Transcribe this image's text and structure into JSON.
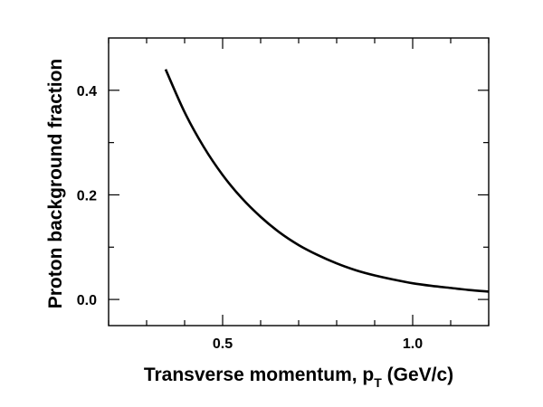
{
  "chart_data": {
    "type": "line",
    "title": "",
    "xlabel_main": "Transverse momentum, p",
    "xlabel_sub": "T",
    "xlabel_unit": " (GeV/c)",
    "ylabel": "Proton background fraction",
    "xlim": [
      0.2,
      1.2
    ],
    "ylim": [
      -0.05,
      0.5
    ],
    "x_ticks": [
      {
        "value": 0.5,
        "label": "0.5"
      },
      {
        "value": 1.0,
        "label": "1.0"
      }
    ],
    "y_ticks": [
      {
        "value": 0.0,
        "label": "0.0"
      },
      {
        "value": 0.2,
        "label": "0.2"
      },
      {
        "value": 0.4,
        "label": "0.4"
      }
    ],
    "series": [
      {
        "color": "#000000",
        "x": [
          0.35,
          0.4,
          0.45,
          0.5,
          0.55,
          0.6,
          0.65,
          0.7,
          0.75,
          0.8,
          0.85,
          0.9,
          0.95,
          1.0,
          1.05,
          1.1,
          1.15,
          1.2
        ],
        "y": [
          0.44,
          0.358,
          0.292,
          0.238,
          0.194,
          0.158,
          0.128,
          0.104,
          0.085,
          0.069,
          0.056,
          0.046,
          0.038,
          0.031,
          0.026,
          0.022,
          0.018,
          0.015
        ]
      }
    ]
  }
}
